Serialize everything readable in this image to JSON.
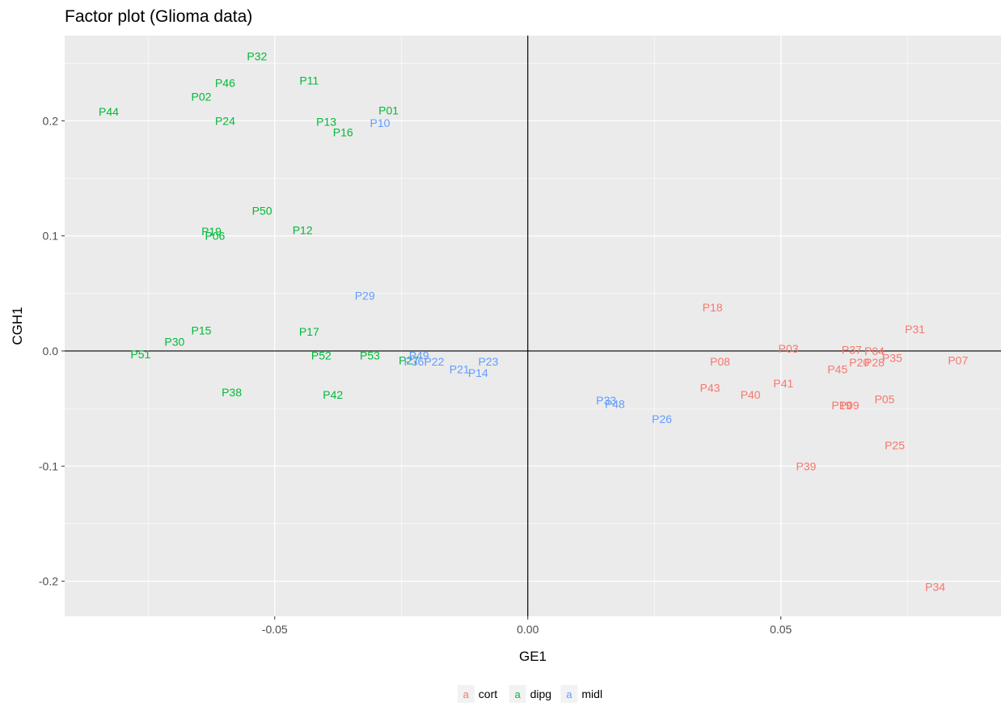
{
  "chart_data": {
    "type": "scatter",
    "title": "Factor plot (Glioma data)",
    "xlabel": "GE1",
    "ylabel": "CGH1",
    "xlim": [
      -0.0915,
      0.0935
    ],
    "ylim": [
      -0.2305,
      0.274
    ],
    "x_ticks": [
      -0.05,
      0.0,
      0.05
    ],
    "x_tick_labels": [
      "-0.05",
      "0.00",
      "0.05"
    ],
    "y_ticks": [
      -0.2,
      -0.1,
      0.0,
      0.1,
      0.2
    ],
    "y_tick_labels": [
      "-0.2",
      "-0.1",
      "0.0",
      "0.1",
      "0.2"
    ],
    "reference_lines": {
      "x": 0,
      "y": 0
    },
    "grid": true,
    "legend_position": "bottom",
    "legend_key_glyph": "a",
    "series": [
      {
        "name": "cort",
        "color": "#F8766D",
        "points": [
          {
            "label": "P18",
            "x": 0.0365,
            "y": 0.038
          },
          {
            "label": "P31",
            "x": 0.0765,
            "y": 0.019
          },
          {
            "label": "P03",
            "x": 0.0515,
            "y": 0.002
          },
          {
            "label": "P37",
            "x": 0.064,
            "y": 0.001
          },
          {
            "label": "P04",
            "x": 0.0685,
            "y": 0.0
          },
          {
            "label": "P35",
            "x": 0.072,
            "y": -0.006
          },
          {
            "label": "P08",
            "x": 0.038,
            "y": -0.009
          },
          {
            "label": "P07",
            "x": 0.085,
            "y": -0.008
          },
          {
            "label": "P20",
            "x": 0.0655,
            "y": -0.01
          },
          {
            "label": "P28",
            "x": 0.0685,
            "y": -0.01
          },
          {
            "label": "P45",
            "x": 0.0612,
            "y": -0.016
          },
          {
            "label": "P41",
            "x": 0.0505,
            "y": -0.028
          },
          {
            "label": "P43",
            "x": 0.036,
            "y": -0.032
          },
          {
            "label": "P40",
            "x": 0.044,
            "y": -0.038
          },
          {
            "label": "P05",
            "x": 0.0705,
            "y": -0.042
          },
          {
            "label": "P19",
            "x": 0.062,
            "y": -0.047
          },
          {
            "label": "P09",
            "x": 0.0635,
            "y": -0.047
          },
          {
            "label": "P25",
            "x": 0.0725,
            "y": -0.082
          },
          {
            "label": "P39",
            "x": 0.055,
            "y": -0.1
          },
          {
            "label": "P34",
            "x": 0.0805,
            "y": -0.205
          }
        ]
      },
      {
        "name": "dipg",
        "color": "#00BA38",
        "points": [
          {
            "label": "P32",
            "x": -0.0535,
            "y": 0.256
          },
          {
            "label": "P11",
            "x": -0.0432,
            "y": 0.235
          },
          {
            "label": "P46",
            "x": -0.0598,
            "y": 0.233
          },
          {
            "label": "P02",
            "x": -0.0645,
            "y": 0.221
          },
          {
            "label": "P44",
            "x": -0.0828,
            "y": 0.208
          },
          {
            "label": "P01",
            "x": -0.0275,
            "y": 0.209
          },
          {
            "label": "P24",
            "x": -0.0598,
            "y": 0.2
          },
          {
            "label": "P13",
            "x": -0.0398,
            "y": 0.199
          },
          {
            "label": "P16",
            "x": -0.0365,
            "y": 0.19
          },
          {
            "label": "P50",
            "x": -0.0525,
            "y": 0.122
          },
          {
            "label": "P12",
            "x": -0.0445,
            "y": 0.105
          },
          {
            "label": "P19",
            "x": -0.0625,
            "y": 0.104
          },
          {
            "label": "P06",
            "x": -0.0618,
            "y": 0.1
          },
          {
            "label": "P15",
            "x": -0.0645,
            "y": 0.018
          },
          {
            "label": "P17",
            "x": -0.0432,
            "y": 0.017
          },
          {
            "label": "P30",
            "x": -0.0698,
            "y": 0.008
          },
          {
            "label": "P51",
            "x": -0.0765,
            "y": -0.003
          },
          {
            "label": "P52",
            "x": -0.0408,
            "y": -0.004
          },
          {
            "label": "P53",
            "x": -0.0312,
            "y": -0.004
          },
          {
            "label": "P27",
            "x": -0.0235,
            "y": -0.008
          },
          {
            "label": "P38",
            "x": -0.0585,
            "y": -0.036
          },
          {
            "label": "P42",
            "x": -0.0385,
            "y": -0.038
          }
        ]
      },
      {
        "name": "midl",
        "color": "#619CFF",
        "points": [
          {
            "label": "P10",
            "x": -0.0292,
            "y": 0.198
          },
          {
            "label": "P29",
            "x": -0.0322,
            "y": 0.048
          },
          {
            "label": "P49",
            "x": -0.0215,
            "y": -0.004
          },
          {
            "label": "P36",
            "x": -0.0225,
            "y": -0.009
          },
          {
            "label": "P22",
            "x": -0.0185,
            "y": -0.009
          },
          {
            "label": "P23",
            "x": -0.0078,
            "y": -0.009
          },
          {
            "label": "P21",
            "x": -0.0135,
            "y": -0.016
          },
          {
            "label": "P14",
            "x": -0.0098,
            "y": -0.019
          },
          {
            "label": "P33",
            "x": 0.0155,
            "y": -0.043
          },
          {
            "label": "P48",
            "x": 0.0172,
            "y": -0.046
          },
          {
            "label": "P26",
            "x": 0.0265,
            "y": -0.059
          }
        ]
      }
    ]
  }
}
